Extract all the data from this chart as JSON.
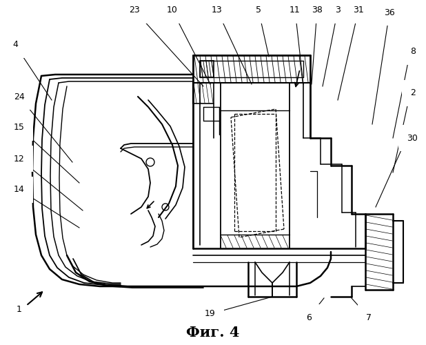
{
  "title": "Фиг. 4",
  "background_color": "#ffffff",
  "figure_width": 6.18,
  "figure_height": 5.0,
  "dpi": 100,
  "top_labels": {
    "23": 0.255,
    "10": 0.335,
    "13": 0.415,
    "5": 0.495,
    "11": 0.565,
    "38": 0.62,
    "3": 0.66,
    "31": 0.71,
    "36": 0.8
  },
  "right_labels": {
    "8": 0.79,
    "2": 0.7,
    "30": 0.59
  },
  "left_labels": {
    "4": 0.83,
    "24": 0.68,
    "15": 0.6,
    "12": 0.52,
    "14": 0.45
  },
  "bottom_labels": {
    "1": 0.1,
    "19": 0.36,
    "6": 0.62,
    "7": 0.75
  }
}
